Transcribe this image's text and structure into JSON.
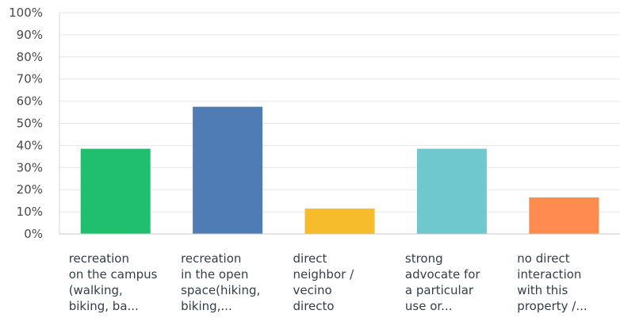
{
  "chart_data": {
    "type": "bar",
    "title": "",
    "xlabel": "",
    "ylabel": "",
    "ylim": [
      0,
      100
    ],
    "yticks": [
      "0%",
      "10%",
      "20%",
      "30%",
      "40%",
      "50%",
      "60%",
      "70%",
      "80%",
      "90%",
      "100%"
    ],
    "grid": true,
    "legend": "none",
    "categories": [
      "recreation\non the campus\n(walking,\nbiking, ba...",
      "recreation\nin the open\nspace(hiking,\nbiking,...",
      "direct\nneighbor /\nvecino\ndirecto",
      "strong\nadvocate for\na particular\nuse or...",
      "no direct\ninteraction\nwith this\nproperty /..."
    ],
    "values": [
      38.5,
      57.5,
      11.5,
      38.5,
      16.5
    ],
    "colors": [
      "#1fbf6f",
      "#507cb6",
      "#f7bc2c",
      "#6fc8ce",
      "#ff8b50"
    ]
  }
}
